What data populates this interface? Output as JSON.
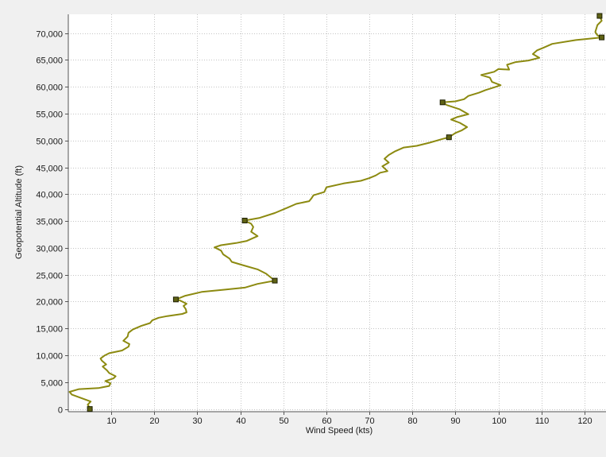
{
  "chart_data": {
    "type": "line",
    "xlabel": "Wind Speed (kts)",
    "ylabel": "Geopotential Altitude (ft)",
    "xlim": [
      0,
      125
    ],
    "ylim": [
      -500,
      73500
    ],
    "xticks": [
      10,
      20,
      30,
      40,
      50,
      60,
      70,
      80,
      90,
      100,
      110,
      120
    ],
    "xtick_labels": [
      "10",
      "20",
      "30",
      "40",
      "50",
      "60",
      "70",
      "80",
      "90",
      "100",
      "110",
      "120"
    ],
    "yticks": [
      0,
      5000,
      10000,
      15000,
      20000,
      25000,
      30000,
      35000,
      40000,
      45000,
      50000,
      55000,
      60000,
      65000,
      70000
    ],
    "ytick_labels": [
      "0",
      "5,000",
      "10,000",
      "15,000",
      "20,000",
      "25,000",
      "30,000",
      "35,000",
      "40,000",
      "45,000",
      "50,000",
      "55,000",
      "60,000",
      "65,000",
      "70,000"
    ],
    "grid": true,
    "colors": {
      "line": "#8c8a10",
      "marker_fill": "#5f6214",
      "marker_stroke": "#1e2005",
      "grid": "#c4c4c4",
      "plot_bg": "#ffffff",
      "outer_bg": "#f0f0f0",
      "axis": "#555555",
      "text": "#1a1a1a"
    },
    "series": [
      {
        "points": [
          [
            5,
            0
          ],
          [
            5,
            200
          ],
          [
            4.5,
            800
          ],
          [
            5.2,
            1400
          ],
          [
            3.5,
            1900
          ],
          [
            0.8,
            2700
          ],
          [
            0.3,
            3200
          ],
          [
            2.5,
            3700
          ],
          [
            7,
            3900
          ],
          [
            9.5,
            4300
          ],
          [
            9.8,
            4800
          ],
          [
            8.6,
            5200
          ],
          [
            10.5,
            5700
          ],
          [
            11,
            6100
          ],
          [
            9.5,
            6700
          ],
          [
            9,
            7200
          ],
          [
            8,
            7900
          ],
          [
            8.8,
            8300
          ],
          [
            7.8,
            9000
          ],
          [
            7.5,
            9400
          ],
          [
            8.5,
            10000
          ],
          [
            9.5,
            10400
          ],
          [
            12.5,
            10900
          ],
          [
            14,
            11600
          ],
          [
            14.2,
            12100
          ],
          [
            12.8,
            12700
          ],
          [
            13.8,
            13500
          ],
          [
            14,
            14200
          ],
          [
            15,
            14800
          ],
          [
            17,
            15500
          ],
          [
            19,
            16000
          ],
          [
            19.5,
            16500
          ],
          [
            21,
            17000
          ],
          [
            23,
            17300
          ],
          [
            26.5,
            17700
          ],
          [
            27.5,
            18000
          ],
          [
            27.3,
            18600
          ],
          [
            26.8,
            19200
          ],
          [
            27.5,
            19600
          ],
          [
            26,
            20200
          ],
          [
            25,
            20400
          ],
          [
            27.2,
            21100
          ],
          [
            31,
            21800
          ],
          [
            36,
            22200
          ],
          [
            41,
            22600
          ],
          [
            44,
            23300
          ],
          [
            48,
            23900
          ],
          [
            46,
            25200
          ],
          [
            44,
            26000
          ],
          [
            40.5,
            26800
          ],
          [
            38,
            27400
          ],
          [
            37.5,
            28000
          ],
          [
            36,
            28800
          ],
          [
            35.5,
            29500
          ],
          [
            34,
            30100
          ],
          [
            35.5,
            30500
          ],
          [
            39,
            30900
          ],
          [
            41.5,
            31300
          ],
          [
            44,
            32200
          ],
          [
            42.5,
            33000
          ],
          [
            43,
            33900
          ],
          [
            42.5,
            34500
          ],
          [
            41,
            35100
          ],
          [
            44.5,
            35600
          ],
          [
            48,
            36500
          ],
          [
            51,
            37500
          ],
          [
            53,
            38200
          ],
          [
            56,
            38700
          ],
          [
            56.5,
            39200
          ],
          [
            57,
            39800
          ],
          [
            59.5,
            40400
          ],
          [
            60,
            41300
          ],
          [
            64,
            42000
          ],
          [
            68,
            42500
          ],
          [
            70,
            43000
          ],
          [
            71.5,
            43500
          ],
          [
            72.5,
            44000
          ],
          [
            74.2,
            44300
          ],
          [
            73,
            45200
          ],
          [
            74.5,
            45900
          ],
          [
            73.5,
            46600
          ],
          [
            74.5,
            47300
          ],
          [
            76,
            48000
          ],
          [
            78,
            48700
          ],
          [
            81,
            49000
          ],
          [
            84,
            49600
          ],
          [
            87,
            50300
          ],
          [
            88.5,
            50600
          ],
          [
            90,
            51400
          ],
          [
            91.5,
            51900
          ],
          [
            92.7,
            52500
          ],
          [
            91,
            53300
          ],
          [
            89,
            53900
          ],
          [
            90.5,
            54400
          ],
          [
            93,
            54900
          ],
          [
            91,
            55800
          ],
          [
            88,
            56600
          ],
          [
            87,
            57100
          ],
          [
            90,
            57300
          ],
          [
            92,
            57700
          ],
          [
            93,
            58300
          ],
          [
            95.5,
            58900
          ],
          [
            97,
            59400
          ],
          [
            99,
            59900
          ],
          [
            100.5,
            60300
          ],
          [
            98.5,
            60900
          ],
          [
            98,
            61700
          ],
          [
            96,
            62200
          ],
          [
            99,
            62800
          ],
          [
            100,
            63300
          ],
          [
            102.5,
            63200
          ],
          [
            102,
            64100
          ],
          [
            104,
            64600
          ],
          [
            107,
            64900
          ],
          [
            109.5,
            65400
          ],
          [
            108,
            66100
          ],
          [
            109,
            66800
          ],
          [
            110.5,
            67300
          ],
          [
            112.5,
            68000
          ],
          [
            118,
            68700
          ],
          [
            124,
            69200
          ],
          [
            123,
            69600
          ],
          [
            122.5,
            70200
          ],
          [
            123,
            71500
          ],
          [
            124,
            72300
          ],
          [
            123.5,
            73200
          ]
        ],
        "markers": [
          [
            5,
            0
          ],
          [
            25,
            20400
          ],
          [
            48,
            23900
          ],
          [
            41,
            35100
          ],
          [
            88.5,
            50600
          ],
          [
            87,
            57100
          ],
          [
            124,
            69200
          ],
          [
            123.5,
            73200
          ]
        ]
      }
    ]
  }
}
